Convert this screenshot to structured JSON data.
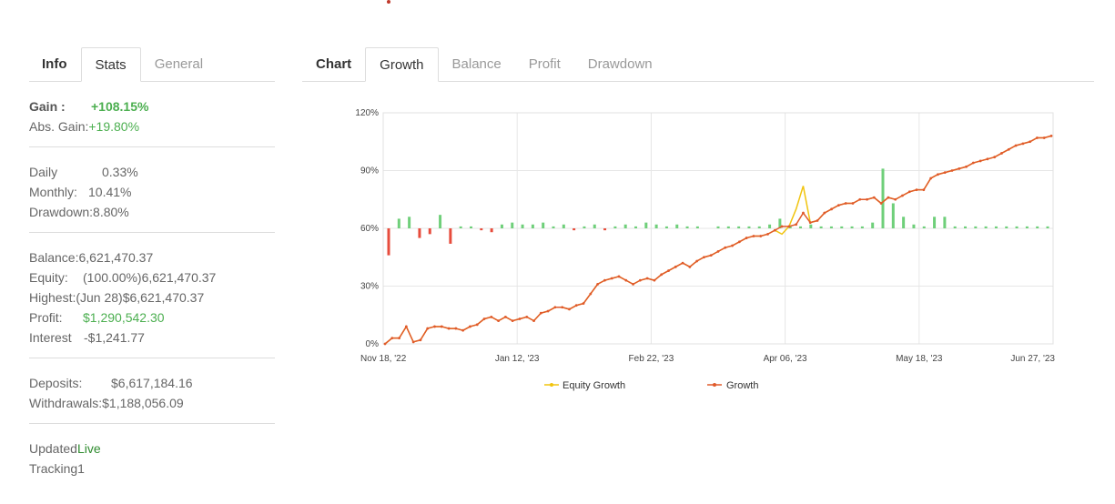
{
  "left_panel": {
    "tabs": [
      {
        "label": "Info"
      },
      {
        "label": "Stats"
      },
      {
        "label": "General"
      }
    ],
    "gain_label": "Gain :",
    "gain_value": "+108.15%",
    "abs_gain_label": "Abs. Gain:",
    "abs_gain_value": "+19.80%",
    "daily_label": "Daily",
    "daily_value": "0.33%",
    "monthly_label": "Monthly:",
    "monthly_value": "10.41%",
    "drawdown_label": "Drawdown:",
    "drawdown_value": "8.80%",
    "balance_label": "Balance:",
    "balance_value": "6,621,470.37",
    "equity_label": "Equity:",
    "equity_value": "(100.00%)6,621,470.37",
    "highest_label": "Highest:",
    "highest_value": "(Jun 28)$6,621,470.37",
    "profit_label": "Profit:",
    "profit_value": "$1,290,542.30",
    "interest_label": "Interest",
    "interest_value": "-$1,241.77",
    "deposits_label": "Deposits:",
    "deposits_value": "$6,617,184.16",
    "withdrawals_label": "Withdrawals:",
    "withdrawals_value": "$1,188,056.09",
    "updated_label": "Updated",
    "updated_value": "Live",
    "tracking_label": "Tracking",
    "tracking_value": "1"
  },
  "right_panel": {
    "tabs": [
      {
        "label": "Chart"
      },
      {
        "label": "Growth"
      },
      {
        "label": "Balance"
      },
      {
        "label": "Profit"
      },
      {
        "label": "Drawdown"
      }
    ]
  },
  "colors": {
    "growth_line": "#e05a2b",
    "equity_line": "#f1c40f",
    "positive_bar": "#6fcf7a",
    "negative_bar": "#e74c3c",
    "gain_green": "#4caf50"
  },
  "chart_data": {
    "type": "line",
    "x_ticks": [
      "Nov 18, '22",
      "Jan 12, '23",
      "Feb 22, '23",
      "Apr 06, '23",
      "May 18, '23",
      "Jun 27, '23"
    ],
    "y_ticks": [
      "0%",
      "30%",
      "60%",
      "90%",
      "120%"
    ],
    "ylim": [
      0,
      120
    ],
    "grid": true,
    "legend_position": "bottom",
    "series": [
      {
        "name": "Growth",
        "values": [
          0,
          3,
          3,
          9,
          1,
          2,
          8,
          9,
          9,
          8,
          8,
          7,
          9,
          10,
          13,
          14,
          12,
          14,
          12,
          13,
          14,
          12,
          16,
          17,
          19,
          19,
          18,
          20,
          21,
          26,
          31,
          33,
          34,
          35,
          33,
          31,
          33,
          34,
          33,
          36,
          38,
          40,
          42,
          40,
          43,
          45,
          46,
          48,
          50,
          51,
          53,
          55,
          56,
          56,
          57,
          59,
          61,
          61,
          62,
          68,
          63,
          64,
          68,
          70,
          72,
          73,
          73,
          75,
          75,
          76,
          73,
          76,
          75,
          77,
          79,
          80,
          80,
          86,
          88,
          89,
          90,
          91,
          92,
          94,
          95,
          96,
          97,
          99,
          101,
          103,
          104,
          105,
          107,
          107,
          108
        ]
      },
      {
        "name": "Equity Growth",
        "values": [
          0,
          3,
          3,
          9,
          1,
          2,
          8,
          9,
          9,
          8,
          8,
          7,
          9,
          10,
          13,
          14,
          12,
          14,
          12,
          13,
          14,
          12,
          16,
          17,
          19,
          19,
          18,
          20,
          21,
          26,
          31,
          33,
          34,
          35,
          33,
          31,
          33,
          34,
          33,
          36,
          38,
          40,
          42,
          40,
          43,
          45,
          46,
          48,
          50,
          51,
          53,
          55,
          56,
          56,
          57,
          59,
          57,
          61,
          70,
          82,
          63,
          64,
          68,
          70,
          72,
          73,
          73,
          75,
          75,
          76,
          73,
          76,
          75,
          77,
          79,
          80,
          80,
          86,
          88,
          89,
          90,
          91,
          92,
          94,
          95,
          96,
          97,
          99,
          101,
          103,
          104,
          105,
          107,
          107,
          108
        ]
      }
    ],
    "bars": [
      -14,
      5,
      6,
      -5,
      -3,
      7,
      -8,
      1,
      1,
      -1,
      -2,
      2,
      3,
      2,
      2,
      3,
      1,
      2,
      -1,
      1,
      2,
      -1,
      1,
      2,
      1,
      3,
      2,
      1,
      2,
      1,
      1,
      0,
      1,
      1,
      1,
      1,
      1,
      2,
      5,
      1,
      1,
      2,
      1,
      1,
      1,
      1,
      1,
      3,
      31,
      13,
      6,
      2,
      1,
      6,
      6,
      1,
      1,
      1,
      1,
      1,
      1,
      1,
      1,
      1,
      1
    ]
  }
}
